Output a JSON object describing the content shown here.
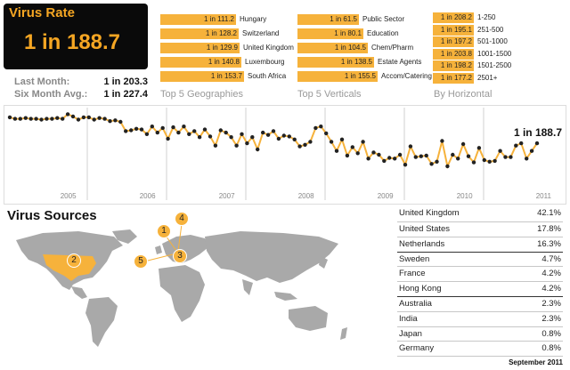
{
  "rate_card": {
    "title": "Virus Rate",
    "value": "1 in 188.7"
  },
  "stats": {
    "last_month_label": "Last Month:",
    "last_month_value": "1 in 203.3",
    "six_month_label": "Six Month Avg.:",
    "six_month_value": "1 in 227.4"
  },
  "geographies": {
    "title": "Top 5 Geographies",
    "items": [
      {
        "value": "1 in 111.2",
        "label": "Hungary",
        "ratio": 111.2
      },
      {
        "value": "1 in 128.2",
        "label": "Switzerland",
        "ratio": 128.2
      },
      {
        "value": "1 in 129.9",
        "label": "United Kingdom",
        "ratio": 129.9
      },
      {
        "value": "1 in 140.8",
        "label": "Luxembourg",
        "ratio": 140.8
      },
      {
        "value": "1 in 153.7",
        "label": "South Africa",
        "ratio": 153.7
      }
    ]
  },
  "verticals": {
    "title": "Top 5 Verticals",
    "items": [
      {
        "value": "1 in 61.5",
        "label": "Public Sector",
        "ratio": 61.5
      },
      {
        "value": "1 in 80.1",
        "label": "Education",
        "ratio": 80.1
      },
      {
        "value": "1 in 104.5",
        "label": "Chem/Pharm",
        "ratio": 104.5
      },
      {
        "value": "1 in 138.5",
        "label": "Estate Agents",
        "ratio": 138.5
      },
      {
        "value": "1 in 155.5",
        "label": "Accom/Catering",
        "ratio": 155.5
      }
    ]
  },
  "horizontal": {
    "title": "By Horizontal",
    "items": [
      {
        "value": "1 in 208.2",
        "label": "1-250",
        "ratio": 208.2
      },
      {
        "value": "1 in 195.1",
        "label": "251-500",
        "ratio": 195.1
      },
      {
        "value": "1 in 197.2",
        "label": "501-1000",
        "ratio": 197.2
      },
      {
        "value": "1 in 203.8",
        "label": "1001-1500",
        "ratio": 203.8
      },
      {
        "value": "1 in 198.2",
        "label": "1501-2500",
        "ratio": 198.2
      },
      {
        "value": "1 in 177.2",
        "label": "2501+",
        "ratio": 177.2
      }
    ]
  },
  "chart_data": {
    "type": "line",
    "title": "",
    "xlabel": "",
    "ylabel": "",
    "x_ticks": [
      "2005",
      "2006",
      "2007",
      "2008",
      "2009",
      "2010",
      "2011"
    ],
    "end_label": "1 in 188.7",
    "series_color": "#f6b23b",
    "grid": "vertical year lines",
    "relative_level": [
      0.92,
      0.9,
      0.9,
      0.91,
      0.9,
      0.9,
      0.89,
      0.9,
      0.9,
      0.91,
      0.9,
      0.96,
      0.93,
      0.89,
      0.92,
      0.92,
      0.89,
      0.91,
      0.9,
      0.87,
      0.88,
      0.86,
      0.74,
      0.75,
      0.77,
      0.76,
      0.7,
      0.8,
      0.72,
      0.78,
      0.64,
      0.79,
      0.72,
      0.8,
      0.7,
      0.74,
      0.66,
      0.76,
      0.67,
      0.55,
      0.75,
      0.72,
      0.66,
      0.55,
      0.7,
      0.58,
      0.66,
      0.5,
      0.72,
      0.69,
      0.74,
      0.64,
      0.68,
      0.67,
      0.63,
      0.54,
      0.56,
      0.6,
      0.78,
      0.8,
      0.71,
      0.6,
      0.48,
      0.63,
      0.42,
      0.53,
      0.45,
      0.6,
      0.38,
      0.46,
      0.43,
      0.35,
      0.39,
      0.38,
      0.43,
      0.3,
      0.54,
      0.4,
      0.41,
      0.42,
      0.31,
      0.34,
      0.61,
      0.28,
      0.43,
      0.38,
      0.57,
      0.41,
      0.33,
      0.52,
      0.36,
      0.34,
      0.35,
      0.48,
      0.4,
      0.4,
      0.55,
      0.58,
      0.38,
      0.48,
      0.58
    ]
  },
  "sources": {
    "title": "Virus Sources",
    "markers": [
      "1",
      "2",
      "3",
      "4",
      "5"
    ],
    "countries": [
      {
        "name": "United Kingdom",
        "pct": "42.1%"
      },
      {
        "name": "United States",
        "pct": "17.8%"
      },
      {
        "name": "Netherlands",
        "pct": "16.3%"
      },
      {
        "name": "Sweden",
        "pct": "4.7%"
      },
      {
        "name": "France",
        "pct": "4.2%"
      },
      {
        "name": "Hong Kong",
        "pct": "4.2%"
      },
      {
        "name": "Australia",
        "pct": "2.3%"
      },
      {
        "name": "India",
        "pct": "2.3%"
      },
      {
        "name": "Japan",
        "pct": "0.8%"
      },
      {
        "name": "Germany",
        "pct": "0.8%"
      }
    ]
  },
  "footer": {
    "date": "September 2011"
  },
  "colors": {
    "accent": "#f6b23b",
    "card_bg": "#0a0a0a",
    "map_land": "#a9a9a9"
  }
}
